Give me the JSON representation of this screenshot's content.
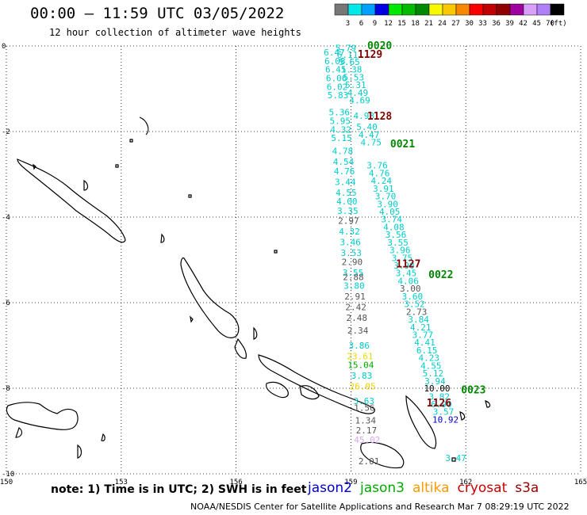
{
  "header": {
    "title": "00:00 — 11:59 UTC 03/05/2022",
    "subtitle": "12 hour collection of altimeter wave heights"
  },
  "colorbar": {
    "unit_label": "(ft)",
    "bins": [
      {
        "label": "3",
        "color": "#777777"
      },
      {
        "label": "6",
        "color": "#00e8e8"
      },
      {
        "label": "9",
        "color": "#00a0ff"
      },
      {
        "label": "12",
        "color": "#0000e0"
      },
      {
        "label": "15",
        "color": "#00e800"
      },
      {
        "label": "18",
        "color": "#00bb00"
      },
      {
        "label": "21",
        "color": "#008800"
      },
      {
        "label": "24",
        "color": "#f8f800"
      },
      {
        "label": "27",
        "color": "#f8c800"
      },
      {
        "label": "30",
        "color": "#f88800"
      },
      {
        "label": "33",
        "color": "#f80000"
      },
      {
        "label": "36",
        "color": "#c00000"
      },
      {
        "label": "39",
        "color": "#900000"
      },
      {
        "label": "42",
        "color": "#a000a0"
      },
      {
        "label": "45",
        "color": "#d8a0f8"
      },
      {
        "label": "70",
        "color": "#b080f8"
      },
      {
        "label": "",
        "color": "#000000"
      }
    ]
  },
  "axes": {
    "x_ticks": [
      "150",
      "153",
      "156",
      "159",
      "162",
      "165"
    ],
    "y_ticks": [
      "0",
      "-2",
      "-4",
      "-6",
      "-8",
      "-10"
    ]
  },
  "tracks": {
    "east": [
      {
        "v": "5.79",
        "lat": -0.05
      },
      {
        "v": "6.11",
        "lat": -0.2
      },
      {
        "v": "5.65",
        "lat": -0.37
      },
      {
        "v": "5.38",
        "lat": -0.55
      },
      {
        "v": "5.53",
        "lat": -0.73
      },
      {
        "v": "5.31",
        "lat": -0.91
      },
      {
        "v": "4.49",
        "lat": -1.09
      },
      {
        "v": "4.69",
        "lat": -1.27
      },
      {
        "v": "4.98",
        "lat": -1.63
      },
      {
        "v": "5.40",
        "lat": -1.89
      },
      {
        "v": "4.47",
        "lat": -2.07
      },
      {
        "v": "4.75",
        "lat": -2.25
      },
      {
        "v": "3.76",
        "lat": -2.79
      },
      {
        "v": "4.76",
        "lat": -2.97
      },
      {
        "v": "4.24",
        "lat": -3.15
      },
      {
        "v": "3.91",
        "lat": -3.33
      },
      {
        "v": "3.70",
        "lat": -3.51
      },
      {
        "v": "3.90",
        "lat": -3.69
      },
      {
        "v": "4.05",
        "lat": -3.87
      },
      {
        "v": "3.74",
        "lat": -4.05
      },
      {
        "v": "4.08",
        "lat": -4.23
      },
      {
        "v": "3.56",
        "lat": -4.41
      },
      {
        "v": "3.55",
        "lat": -4.59
      },
      {
        "v": "3.96",
        "lat": -4.77
      },
      {
        "v": "3.75",
        "lat": -4.95
      },
      {
        "v": "3.90",
        "lat": -5.13
      },
      {
        "v": "3.45",
        "lat": -5.31
      },
      {
        "v": "4.06",
        "lat": -5.49
      },
      {
        "v": "3.60",
        "lat": -5.85
      },
      {
        "v": "3.52",
        "lat": -6.03
      },
      {
        "v": "3.84",
        "lat": -6.39
      },
      {
        "v": "4.21",
        "lat": -6.57
      },
      {
        "v": "3.77",
        "lat": -6.75
      },
      {
        "v": "4.41",
        "lat": -6.93
      },
      {
        "v": "6.15",
        "lat": -7.11
      },
      {
        "v": "4.23",
        "lat": -7.29
      },
      {
        "v": "4.55",
        "lat": -7.47
      },
      {
        "v": "5.12",
        "lat": -7.65
      },
      {
        "v": "3.94",
        "lat": -7.83
      },
      {
        "v": "3.82",
        "lat": -8.19
      },
      {
        "v": "6.90",
        "lat": -8.37
      },
      {
        "v": "3.57",
        "lat": -8.55
      },
      {
        "v": "3.47",
        "lat": -9.63
      }
    ],
    "east_other": [
      {
        "v": "3.00",
        "lat": -5.67,
        "c": "#555555"
      },
      {
        "v": "2.73",
        "lat": -6.21,
        "c": "#555555"
      },
      {
        "v": "10.00",
        "lat": -8.0,
        "c": "#000000"
      },
      {
        "v": "10.92",
        "lat": -8.73,
        "c": "#0000cc"
      }
    ],
    "west": [
      {
        "v": "6.47",
        "lat": -0.15
      },
      {
        "v": "6.08",
        "lat": -0.35
      },
      {
        "v": "6.41",
        "lat": -0.55
      },
      {
        "v": "6.06",
        "lat": -0.75
      },
      {
        "v": "6.02",
        "lat": -0.95
      },
      {
        "v": "5.83",
        "lat": -1.15
      },
      {
        "v": "5.36",
        "lat": -1.55
      },
      {
        "v": "5.95",
        "lat": -1.75
      },
      {
        "v": "4.32",
        "lat": -1.95
      },
      {
        "v": "5.15",
        "lat": -2.15
      },
      {
        "v": "4.78",
        "lat": -2.45
      },
      {
        "v": "4.54",
        "lat": -2.7
      },
      {
        "v": "4.76",
        "lat": -2.93
      },
      {
        "v": "3.44",
        "lat": -3.18
      },
      {
        "v": "4.55",
        "lat": -3.43
      },
      {
        "v": "4.00",
        "lat": -3.63
      },
      {
        "v": "3.35",
        "lat": -3.85
      },
      {
        "v": "4.32",
        "lat": -4.33
      },
      {
        "v": "3.46",
        "lat": -4.58
      },
      {
        "v": "3.53",
        "lat": -4.83
      },
      {
        "v": "3.55",
        "lat": -5.3
      },
      {
        "v": "3.80",
        "lat": -5.6
      },
      {
        "v": "3.86",
        "lat": -7.0
      },
      {
        "v": "3.83",
        "lat": -7.7
      },
      {
        "v": "3.63",
        "lat": -8.3
      }
    ],
    "west_other": [
      {
        "v": "2.97",
        "lat": -4.08,
        "c": "#555555"
      },
      {
        "v": "2.90",
        "lat": -5.05,
        "c": "#555555"
      },
      {
        "v": "2.88",
        "lat": -5.4,
        "c": "#555555"
      },
      {
        "v": "2.91",
        "lat": -5.85,
        "c": "#555555"
      },
      {
        "v": "2.42",
        "lat": -6.1,
        "c": "#555555"
      },
      {
        "v": "2.48",
        "lat": -6.35,
        "c": "#555555"
      },
      {
        "v": "2.34",
        "lat": -6.65,
        "c": "#555555"
      },
      {
        "v": "23.61",
        "lat": -7.25,
        "c": "#e8d800"
      },
      {
        "v": "15.04",
        "lat": -7.45,
        "c": "#00aa00"
      },
      {
        "v": "26.05",
        "lat": -7.95,
        "c": "#f0d000"
      },
      {
        "v": "1.56",
        "lat": -8.45,
        "c": "#555555"
      },
      {
        "v": "1.34",
        "lat": -8.75,
        "c": "#555555"
      },
      {
        "v": "2.17",
        "lat": -8.98,
        "c": "#555555"
      },
      {
        "v": "45.02",
        "lat": -9.2,
        "c": "#d8a8f8"
      },
      {
        "v": "2.01",
        "lat": -9.7,
        "c": "#555555"
      }
    ]
  },
  "times": [
    {
      "t": "0020",
      "c": "#008800",
      "lon": 159.75,
      "lat": 0.0
    },
    {
      "t": "1129",
      "c": "#880000",
      "lon": 159.5,
      "lat": -0.2
    },
    {
      "t": "1128",
      "c": "#880000",
      "lon": 159.75,
      "lat": -1.65
    },
    {
      "t": "0021",
      "c": "#008800",
      "lon": 160.35,
      "lat": -2.3
    },
    {
      "t": "1127",
      "c": "#880000",
      "lon": 160.5,
      "lat": -5.1
    },
    {
      "t": "0022",
      "c": "#008800",
      "lon": 161.35,
      "lat": -5.35
    },
    {
      "t": "0023",
      "c": "#008800",
      "lon": 162.2,
      "lat": -8.05
    },
    {
      "t": "1126",
      "c": "#880000",
      "lon": 161.3,
      "lat": -8.35
    }
  ],
  "footer": {
    "note": "note: 1) Time is in UTC; 2) SWH is in feet",
    "satellites": [
      {
        "name": "jason2",
        "color": "#0000cc"
      },
      {
        "name": "jason3",
        "color": "#00aa00"
      },
      {
        "name": "altika",
        "color": "#ff9900"
      },
      {
        "name": "cryosat",
        "color": "#cc0000"
      },
      {
        "name": "s3a",
        "color": "#990000"
      }
    ],
    "credit": "NOAA/NESDIS Center for Satellite Applications and Research   Mar  7 08:29:19 UTC 2022"
  }
}
